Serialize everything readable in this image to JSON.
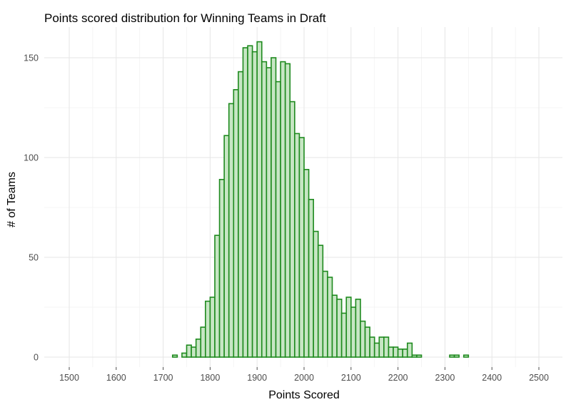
{
  "chart_data": {
    "type": "bar",
    "title": "Points scored distribution for Winning Teams in Draft",
    "xlabel": "Points Scored",
    "ylabel": "# of Teams",
    "xlim": [
      1500,
      2500
    ],
    "ylim": [
      0,
      160
    ],
    "x_ticks": [
      "1500",
      "1600",
      "1700",
      "1800",
      "1900",
      "2000",
      "2100",
      "2200",
      "2300",
      "2400",
      "2500"
    ],
    "y_ticks": [
      "0",
      "50",
      "100",
      "150"
    ],
    "bin_width": 10,
    "bin_start": 1505,
    "grid": true,
    "colors": {
      "bar_fill": "#c7e6c4",
      "bar_stroke": "#1e8a1e"
    },
    "values": [
      0,
      0,
      0,
      0,
      0,
      0,
      0,
      0,
      0,
      0,
      0,
      0,
      0,
      0,
      0,
      0,
      0,
      0,
      0,
      0,
      0,
      0,
      1,
      0,
      2,
      6,
      5,
      9,
      15,
      28,
      30,
      61,
      89,
      111,
      127,
      134,
      143,
      155,
      156,
      153,
      158,
      148,
      145,
      150,
      138,
      148,
      147,
      128,
      112,
      110,
      94,
      79,
      63,
      56,
      43,
      40,
      31,
      29,
      22,
      30,
      25,
      29,
      18,
      15,
      10,
      7,
      10,
      10,
      5,
      5,
      4,
      4,
      7,
      1,
      1,
      0,
      0,
      0,
      0,
      0,
      0,
      1,
      1,
      0,
      1,
      0,
      0,
      0,
      0,
      0,
      0,
      0,
      0,
      0,
      0,
      0,
      0,
      0,
      0,
      0
    ]
  }
}
